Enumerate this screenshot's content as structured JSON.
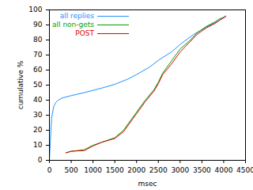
{
  "chart_data": {
    "type": "line",
    "x_label": "msec",
    "y_label": "cumulative %",
    "xlim": [
      0,
      4500
    ],
    "xticks": [
      0,
      500,
      1000,
      1500,
      2000,
      2500,
      3000,
      3500,
      4000,
      4500
    ],
    "ylim": [
      0,
      100
    ],
    "yticks": [
      0,
      10,
      20,
      30,
      40,
      50,
      60,
      70,
      80,
      90,
      100
    ],
    "grid": false,
    "legend": "upper left",
    "series": [
      {
        "name": "all replies",
        "color": "#1e90ff",
        "x": [
          0,
          20,
          50,
          100,
          150,
          200,
          300,
          500,
          800,
          1200,
          1500,
          1800,
          2000,
          2300,
          2500,
          2800,
          3000,
          3300,
          3600,
          3900,
          4050
        ],
        "values": [
          0,
          12,
          28,
          36,
          38.5,
          40,
          41.5,
          43,
          45,
          48,
          50.5,
          54,
          57,
          62,
          66.5,
          72,
          77,
          83.5,
          88.5,
          93,
          95.5
        ]
      },
      {
        "name": "all non-gets",
        "color": "#00a000",
        "x": [
          380,
          500,
          800,
          1000,
          1200,
          1500,
          1700,
          1900,
          2000,
          2200,
          2400,
          2500,
          2600,
          2800,
          3000,
          3200,
          3400,
          3600,
          3800,
          3900,
          4000
        ],
        "values": [
          5,
          6,
          7,
          10,
          12,
          15,
          20,
          28,
          32,
          40,
          47,
          52,
          58,
          66,
          74,
          79,
          85,
          89,
          92,
          94,
          95
        ]
      },
      {
        "name": "POST",
        "color": "#e00000",
        "x": [
          380,
          500,
          800,
          1000,
          1200,
          1500,
          1700,
          1900,
          2000,
          2200,
          2400,
          2500,
          2600,
          2800,
          3000,
          3200,
          3400,
          3600,
          3800,
          3900,
          4050
        ],
        "values": [
          5,
          6,
          6.5,
          9.5,
          12,
          14.5,
          19,
          27,
          31,
          39,
          46,
          51,
          57,
          64,
          72,
          78,
          84,
          88,
          91,
          93,
          96
        ]
      }
    ]
  }
}
